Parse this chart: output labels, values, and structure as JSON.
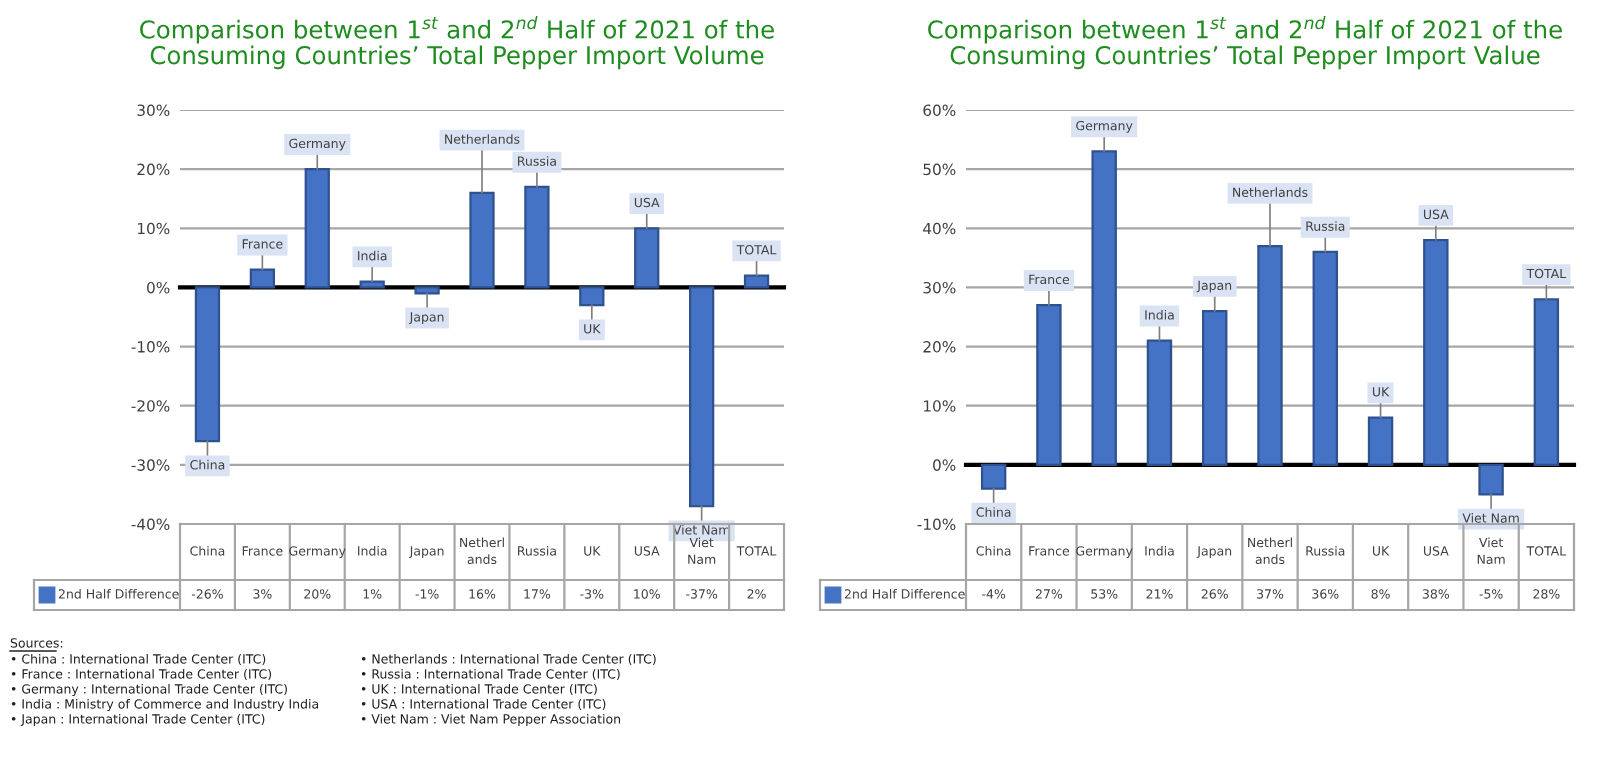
{
  "chart_data": [
    {
      "type": "bar",
      "title": "Comparison between 1$^{st}$ and 2$^{nd}$ Half of 2021 of the\nConsuming Countries’ Total Pepper Import Volume",
      "categories": [
        "China",
        "France",
        "Germany",
        "India",
        "Japan",
        "Netherlands",
        "Russia",
        "UK",
        "USA",
        "Viet Nam",
        "TOTAL"
      ],
      "series": [
        {
          "name": "2nd Half Difference",
          "color": "#4472c4",
          "values": [
            -26,
            3,
            20,
            1,
            -1,
            16,
            17,
            -3,
            10,
            -37,
            2
          ],
          "value_labels": [
            "-26%",
            "3%",
            "20%",
            "1%",
            "-1%",
            "16%",
            "17%",
            "-3%",
            "10%",
            "-37%",
            "2%"
          ]
        }
      ],
      "ylim": [
        -40,
        30
      ],
      "yticks": [
        {
          "value": -40,
          "label": "-40%"
        },
        {
          "value": -30,
          "label": "-30%"
        },
        {
          "value": -20,
          "label": "-20%"
        },
        {
          "value": -10,
          "label": "-10%"
        },
        {
          "value": 0,
          "label": "0%"
        },
        {
          "value": 10,
          "label": "10%"
        },
        {
          "value": 20,
          "label": "20%"
        },
        {
          "value": 30,
          "label": "30%"
        }
      ],
      "grid": "y",
      "legend": "bottom",
      "annotations": [
        {
          "text": "China",
          "x": "China",
          "y": -26
        },
        {
          "text": "France",
          "x": "France",
          "y": 3
        },
        {
          "text": "Germany",
          "x": "Germany",
          "y": 20
        },
        {
          "text": "India",
          "x": "India",
          "y": 1
        },
        {
          "text": "Japan",
          "x": "Japan",
          "y": -1
        },
        {
          "text": "Netherlands",
          "x": "Netherlands",
          "y": 16
        },
        {
          "text": "Russia",
          "x": "Russia",
          "y": 17
        },
        {
          "text": "UK",
          "x": "UK",
          "y": -3
        },
        {
          "text": "USA",
          "x": "USA",
          "y": 10
        },
        {
          "text": "Viet Nam",
          "x": "Viet Nam",
          "y": -37
        },
        {
          "text": "TOTAL",
          "x": "TOTAL",
          "y": 2
        },
        "Sources:",
        "• China : International Trade Center (ITC)",
        "• France : International Trade Center (ITC)",
        "• Germany : International Trade Center (ITC)",
        "• India : Ministry of Commerce and Industry India",
        "• Japan : International Trade Center (ITC)",
        "• Netherlands : International Trade Center (ITC)",
        "• Russia : International Trade Center (ITC)",
        "• UK : International Trade Center (ITC)",
        "• USA : International Trade Center (ITC)",
        "• Viet Nam : Viet Nam Pepper Association"
      ]
    },
    {
      "type": "bar",
      "title": "Comparison between 1$^{st}$ and 2$^{nd}$ Half of 2021 of the\nConsuming Countries’ Total Pepper Import Value",
      "categories": [
        "China",
        "France",
        "Germany",
        "India",
        "Japan",
        "Netherlands",
        "Russia",
        "UK",
        "USA",
        "Viet Nam",
        "TOTAL"
      ],
      "series": [
        {
          "name": "2nd Half Difference",
          "color": "#4472c4",
          "values": [
            -4,
            27,
            53,
            21,
            26,
            37,
            36,
            8,
            38,
            -5,
            28
          ],
          "value_labels": [
            "-4%",
            "27%",
            "53%",
            "21%",
            "26%",
            "37%",
            "36%",
            "8%",
            "38%",
            "-5%",
            "28%"
          ]
        }
      ],
      "ylim": [
        -10,
        60
      ],
      "yticks": [
        {
          "value": -10,
          "label": "-10%"
        },
        {
          "value": 0,
          "label": "0%"
        },
        {
          "value": 10,
          "label": "10%"
        },
        {
          "value": 20,
          "label": "20%"
        },
        {
          "value": 30,
          "label": "30%"
        },
        {
          "value": 40,
          "label": "40%"
        },
        {
          "value": 50,
          "label": "50%"
        },
        {
          "value": 60,
          "label": "60%"
        }
      ],
      "grid": "y",
      "legend": "bottom",
      "annotations": [
        {
          "text": "China",
          "x": "China",
          "y": -4
        },
        {
          "text": "France",
          "x": "France",
          "y": 27
        },
        {
          "text": "Germany",
          "x": "Germany",
          "y": 53
        },
        {
          "text": "India",
          "x": "India",
          "y": 21
        },
        {
          "text": "Japan",
          "x": "Japan",
          "y": 26
        },
        {
          "text": "Netherlands",
          "x": "Netherlands",
          "y": 37
        },
        {
          "text": "Russia",
          "x": "Russia",
          "y": 36
        },
        {
          "text": "UK",
          "x": "UK",
          "y": 8
        },
        {
          "text": "USA",
          "x": "USA",
          "y": 38
        },
        {
          "text": "Viet Nam",
          "x": "Viet Nam",
          "y": -5
        },
        {
          "text": "TOTAL",
          "x": "TOTAL",
          "y": 28
        }
      ]
    }
  ]
}
